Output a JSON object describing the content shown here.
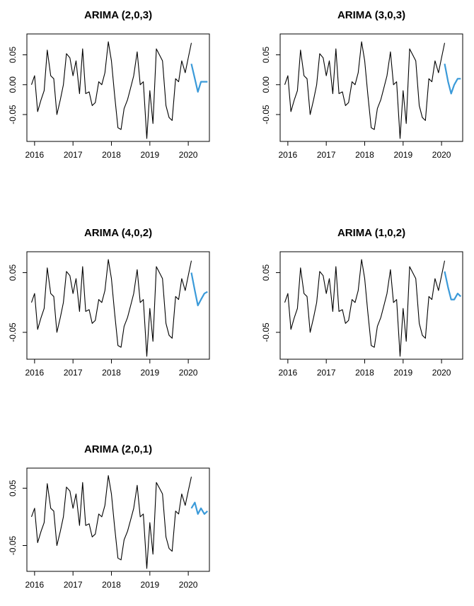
{
  "chart_data": [
    {
      "type": "line",
      "title": "ARIMA (2,0,3)",
      "xlabel": "",
      "ylabel": "",
      "xlim": [
        2015.8,
        2020.55
      ],
      "ylim": [
        -0.095,
        0.085
      ],
      "xticks": [
        2016,
        2017,
        2018,
        2019,
        2020
      ],
      "xtick_labels": [
        "2016",
        "2017",
        "2018",
        "2019",
        "2020"
      ],
      "yticks": [
        -0.05,
        0.0,
        0.05
      ],
      "ytick_labels": [
        "-0.05",
        "0.00",
        "0.05"
      ],
      "series": [
        {
          "role": "observed",
          "color": "#000000",
          "x": [
            2015.92,
            2016.0,
            2016.08,
            2016.17,
            2016.25,
            2016.33,
            2016.42,
            2016.5,
            2016.58,
            2016.67,
            2016.75,
            2016.83,
            2016.92,
            2017.0,
            2017.08,
            2017.17,
            2017.25,
            2017.33,
            2017.42,
            2017.5,
            2017.58,
            2017.67,
            2017.75,
            2017.83,
            2017.92,
            2018.0,
            2018.08,
            2018.17,
            2018.25,
            2018.33,
            2018.42,
            2018.5,
            2018.58,
            2018.67,
            2018.75,
            2018.83,
            2018.92,
            2019.0,
            2019.08,
            2019.17,
            2019.25,
            2019.33,
            2019.42,
            2019.5,
            2019.58,
            2019.67,
            2019.75,
            2019.83,
            2019.92,
            2020.0,
            2020.08
          ],
          "y": [
            0.0,
            0.015,
            -0.045,
            -0.025,
            -0.01,
            0.058,
            0.015,
            0.01,
            -0.05,
            -0.025,
            0.0,
            0.052,
            0.045,
            0.015,
            0.04,
            -0.015,
            0.06,
            -0.015,
            -0.012,
            -0.035,
            -0.03,
            0.005,
            0.0,
            0.02,
            0.072,
            0.04,
            -0.015,
            -0.072,
            -0.075,
            -0.04,
            -0.025,
            -0.005,
            0.015,
            0.055,
            0.0,
            0.005,
            -0.09,
            -0.01,
            -0.065,
            0.06,
            0.05,
            0.04,
            -0.035,
            -0.055,
            -0.06,
            0.01,
            0.005,
            0.04,
            0.02,
            0.045,
            0.07
          ]
        },
        {
          "role": "forecast",
          "color": "#3a9ad9",
          "x": [
            2020.08,
            2020.17,
            2020.25,
            2020.33,
            2020.42,
            2020.5
          ],
          "y": [
            0.035,
            0.01,
            -0.012,
            0.005,
            0.005,
            0.005
          ]
        }
      ]
    },
    {
      "type": "line",
      "title": "ARIMA (3,0,3)",
      "xlabel": "",
      "ylabel": "",
      "xlim": [
        2015.8,
        2020.55
      ],
      "ylim": [
        -0.095,
        0.085
      ],
      "xticks": [
        2016,
        2017,
        2018,
        2019,
        2020
      ],
      "xtick_labels": [
        "2016",
        "2017",
        "2018",
        "2019",
        "2020"
      ],
      "yticks": [
        -0.05,
        0.0,
        0.05
      ],
      "ytick_labels": [
        "-0.05",
        "0.00",
        "0.05"
      ],
      "series": [
        {
          "role": "observed",
          "color": "#000000",
          "x": [
            2015.92,
            2016.0,
            2016.08,
            2016.17,
            2016.25,
            2016.33,
            2016.42,
            2016.5,
            2016.58,
            2016.67,
            2016.75,
            2016.83,
            2016.92,
            2017.0,
            2017.08,
            2017.17,
            2017.25,
            2017.33,
            2017.42,
            2017.5,
            2017.58,
            2017.67,
            2017.75,
            2017.83,
            2017.92,
            2018.0,
            2018.08,
            2018.17,
            2018.25,
            2018.33,
            2018.42,
            2018.5,
            2018.58,
            2018.67,
            2018.75,
            2018.83,
            2018.92,
            2019.0,
            2019.08,
            2019.17,
            2019.25,
            2019.33,
            2019.42,
            2019.5,
            2019.58,
            2019.67,
            2019.75,
            2019.83,
            2019.92,
            2020.0,
            2020.08
          ],
          "y": [
            0.0,
            0.015,
            -0.045,
            -0.025,
            -0.01,
            0.058,
            0.015,
            0.01,
            -0.05,
            -0.025,
            0.0,
            0.052,
            0.045,
            0.015,
            0.04,
            -0.015,
            0.06,
            -0.015,
            -0.012,
            -0.035,
            -0.03,
            0.005,
            0.0,
            0.02,
            0.072,
            0.04,
            -0.015,
            -0.072,
            -0.075,
            -0.04,
            -0.025,
            -0.005,
            0.015,
            0.055,
            0.0,
            0.005,
            -0.09,
            -0.01,
            -0.065,
            0.06,
            0.05,
            0.04,
            -0.035,
            -0.055,
            -0.06,
            0.01,
            0.005,
            0.04,
            0.02,
            0.045,
            0.07
          ]
        },
        {
          "role": "forecast",
          "color": "#3a9ad9",
          "x": [
            2020.08,
            2020.17,
            2020.25,
            2020.33,
            2020.42,
            2020.5
          ],
          "y": [
            0.035,
            0.005,
            -0.015,
            0.0,
            0.01,
            0.01
          ]
        }
      ]
    },
    {
      "type": "line",
      "title": "ARIMA (4,0,2)",
      "xlabel": "",
      "ylabel": "",
      "xlim": [
        2015.8,
        2020.55
      ],
      "ylim": [
        -0.095,
        0.085
      ],
      "xticks": [
        2016,
        2017,
        2018,
        2019,
        2020
      ],
      "xtick_labels": [
        "2016",
        "2017",
        "2018",
        "2019",
        "2020"
      ],
      "yticks": [
        -0.05,
        0.05
      ],
      "ytick_labels": [
        "-0.05",
        "0.05"
      ],
      "series": [
        {
          "role": "observed",
          "color": "#000000",
          "x": [
            2015.92,
            2016.0,
            2016.08,
            2016.17,
            2016.25,
            2016.33,
            2016.42,
            2016.5,
            2016.58,
            2016.67,
            2016.75,
            2016.83,
            2016.92,
            2017.0,
            2017.08,
            2017.17,
            2017.25,
            2017.33,
            2017.42,
            2017.5,
            2017.58,
            2017.67,
            2017.75,
            2017.83,
            2017.92,
            2018.0,
            2018.08,
            2018.17,
            2018.25,
            2018.33,
            2018.42,
            2018.5,
            2018.58,
            2018.67,
            2018.75,
            2018.83,
            2018.92,
            2019.0,
            2019.08,
            2019.17,
            2019.25,
            2019.33,
            2019.42,
            2019.5,
            2019.58,
            2019.67,
            2019.75,
            2019.83,
            2019.92,
            2020.0,
            2020.08
          ],
          "y": [
            0.0,
            0.015,
            -0.045,
            -0.025,
            -0.01,
            0.058,
            0.015,
            0.01,
            -0.05,
            -0.025,
            0.0,
            0.052,
            0.045,
            0.015,
            0.04,
            -0.015,
            0.06,
            -0.015,
            -0.012,
            -0.035,
            -0.03,
            0.005,
            0.0,
            0.02,
            0.072,
            0.04,
            -0.015,
            -0.072,
            -0.075,
            -0.04,
            -0.025,
            -0.005,
            0.015,
            0.055,
            0.0,
            0.005,
            -0.09,
            -0.01,
            -0.065,
            0.06,
            0.05,
            0.04,
            -0.035,
            -0.055,
            -0.06,
            0.01,
            0.005,
            0.04,
            0.02,
            0.045,
            0.07
          ]
        },
        {
          "role": "forecast",
          "color": "#3a9ad9",
          "x": [
            2020.08,
            2020.17,
            2020.25,
            2020.33,
            2020.42,
            2020.5
          ],
          "y": [
            0.05,
            0.02,
            -0.005,
            0.005,
            0.015,
            0.018
          ]
        }
      ]
    },
    {
      "type": "line",
      "title": "ARIMA (1,0,2)",
      "xlabel": "",
      "ylabel": "",
      "xlim": [
        2015.8,
        2020.55
      ],
      "ylim": [
        -0.095,
        0.085
      ],
      "xticks": [
        2016,
        2017,
        2018,
        2019,
        2020
      ],
      "xtick_labels": [
        "2016",
        "2017",
        "2018",
        "2019",
        "2020"
      ],
      "yticks": [
        -0.05,
        0.05
      ],
      "ytick_labels": [
        "-0.05",
        "0.05"
      ],
      "series": [
        {
          "role": "observed",
          "color": "#000000",
          "x": [
            2015.92,
            2016.0,
            2016.08,
            2016.17,
            2016.25,
            2016.33,
            2016.42,
            2016.5,
            2016.58,
            2016.67,
            2016.75,
            2016.83,
            2016.92,
            2017.0,
            2017.08,
            2017.17,
            2017.25,
            2017.33,
            2017.42,
            2017.5,
            2017.58,
            2017.67,
            2017.75,
            2017.83,
            2017.92,
            2018.0,
            2018.08,
            2018.17,
            2018.25,
            2018.33,
            2018.42,
            2018.5,
            2018.58,
            2018.67,
            2018.75,
            2018.83,
            2018.92,
            2019.0,
            2019.08,
            2019.17,
            2019.25,
            2019.33,
            2019.42,
            2019.5,
            2019.58,
            2019.67,
            2019.75,
            2019.83,
            2019.92,
            2020.0,
            2020.08
          ],
          "y": [
            0.0,
            0.015,
            -0.045,
            -0.025,
            -0.01,
            0.058,
            0.015,
            0.01,
            -0.05,
            -0.025,
            0.0,
            0.052,
            0.045,
            0.015,
            0.04,
            -0.015,
            0.06,
            -0.015,
            -0.012,
            -0.035,
            -0.03,
            0.005,
            0.0,
            0.02,
            0.072,
            0.04,
            -0.015,
            -0.072,
            -0.075,
            -0.04,
            -0.025,
            -0.005,
            0.015,
            0.055,
            0.0,
            0.005,
            -0.09,
            -0.01,
            -0.065,
            0.06,
            0.05,
            0.04,
            -0.035,
            -0.055,
            -0.06,
            0.01,
            0.005,
            0.04,
            0.02,
            0.045,
            0.07
          ]
        },
        {
          "role": "forecast",
          "color": "#3a9ad9",
          "x": [
            2020.08,
            2020.17,
            2020.25,
            2020.33,
            2020.42,
            2020.5
          ],
          "y": [
            0.052,
            0.025,
            0.005,
            0.005,
            0.015,
            0.01
          ]
        }
      ]
    },
    {
      "type": "line",
      "title": "ARIMA (2,0,1)",
      "xlabel": "",
      "ylabel": "",
      "xlim": [
        2015.8,
        2020.55
      ],
      "ylim": [
        -0.095,
        0.085
      ],
      "xticks": [
        2016,
        2017,
        2018,
        2019,
        2020
      ],
      "xtick_labels": [
        "2016",
        "2017",
        "2018",
        "2019",
        "2020"
      ],
      "yticks": [
        -0.05,
        0.05
      ],
      "ytick_labels": [
        "-0.05",
        "0.05"
      ],
      "series": [
        {
          "role": "observed",
          "color": "#000000",
          "x": [
            2015.92,
            2016.0,
            2016.08,
            2016.17,
            2016.25,
            2016.33,
            2016.42,
            2016.5,
            2016.58,
            2016.67,
            2016.75,
            2016.83,
            2016.92,
            2017.0,
            2017.08,
            2017.17,
            2017.25,
            2017.33,
            2017.42,
            2017.5,
            2017.58,
            2017.67,
            2017.75,
            2017.83,
            2017.92,
            2018.0,
            2018.08,
            2018.17,
            2018.25,
            2018.33,
            2018.42,
            2018.5,
            2018.58,
            2018.67,
            2018.75,
            2018.83,
            2018.92,
            2019.0,
            2019.08,
            2019.17,
            2019.25,
            2019.33,
            2019.42,
            2019.5,
            2019.58,
            2019.67,
            2019.75,
            2019.83,
            2019.92,
            2020.0,
            2020.08
          ],
          "y": [
            0.0,
            0.015,
            -0.045,
            -0.025,
            -0.01,
            0.058,
            0.015,
            0.01,
            -0.05,
            -0.025,
            0.0,
            0.052,
            0.045,
            0.015,
            0.04,
            -0.015,
            0.06,
            -0.015,
            -0.012,
            -0.035,
            -0.03,
            0.005,
            0.0,
            0.02,
            0.072,
            0.04,
            -0.015,
            -0.072,
            -0.075,
            -0.04,
            -0.025,
            -0.005,
            0.015,
            0.055,
            0.0,
            0.005,
            -0.09,
            -0.01,
            -0.065,
            0.06,
            0.05,
            0.04,
            -0.035,
            -0.055,
            -0.06,
            0.01,
            0.005,
            0.04,
            0.02,
            0.045,
            0.07
          ]
        },
        {
          "role": "forecast",
          "color": "#3a9ad9",
          "x": [
            2020.08,
            2020.17,
            2020.25,
            2020.33,
            2020.42,
            2020.5
          ],
          "y": [
            0.015,
            0.025,
            0.005,
            0.015,
            0.005,
            0.01
          ]
        }
      ]
    }
  ]
}
